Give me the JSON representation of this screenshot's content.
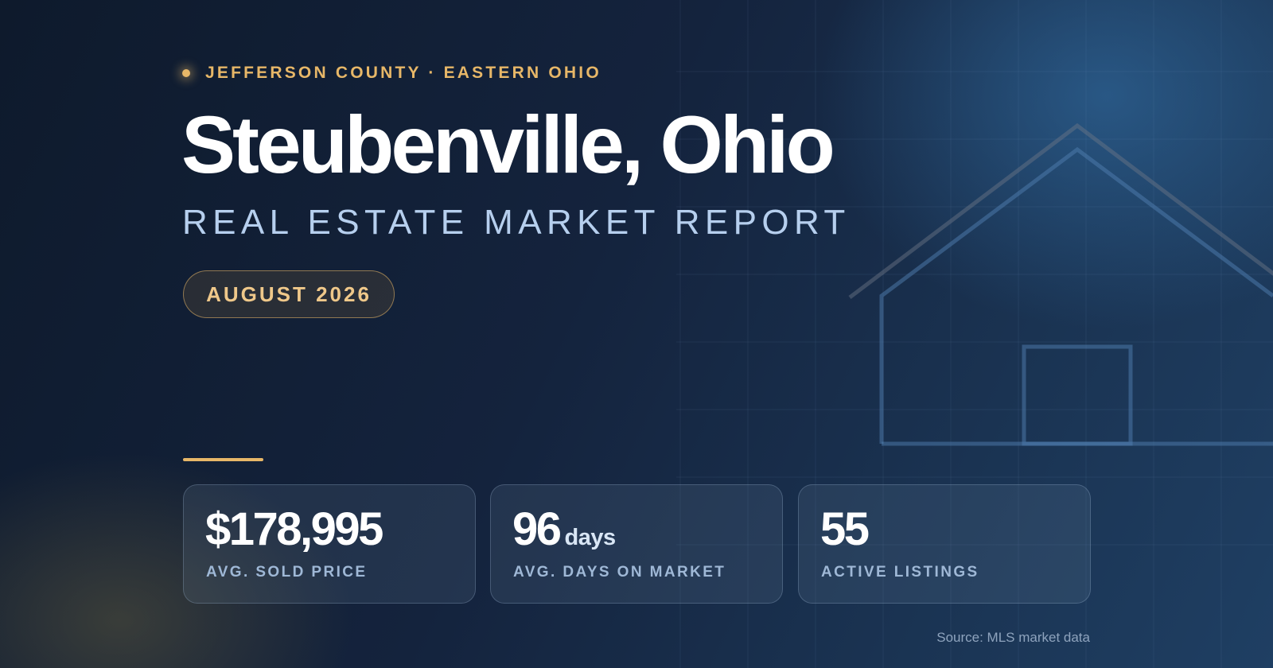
{
  "header": {
    "eyebrow": "JEFFERSON COUNTY · EASTERN OHIO",
    "title": "Steubenville, Ohio",
    "subtitle": "REAL ESTATE MARKET REPORT",
    "date": "AUGUST 2026"
  },
  "stats": [
    {
      "value": "$178,995",
      "label": "AVG. SOLD PRICE"
    },
    {
      "value": "96",
      "unit": "days",
      "label": "AVG. DAYS ON MARKET"
    },
    {
      "value": "55",
      "label": "ACTIVE LISTINGS"
    }
  ],
  "source": "Source: MLS market data"
}
